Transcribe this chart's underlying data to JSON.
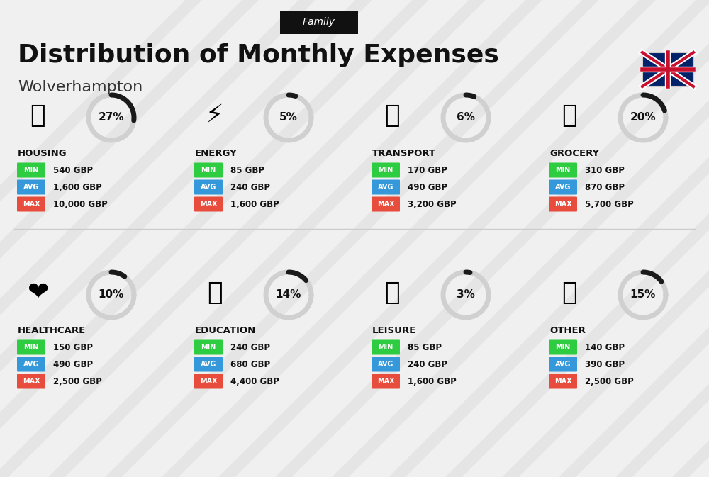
{
  "title": "Distribution of Monthly Expenses",
  "subtitle": "Wolverhampton",
  "tag": "Family",
  "bg_color": "#f0f0f0",
  "categories": [
    {
      "name": "HOUSING",
      "pct": 27,
      "min": "540 GBP",
      "avg": "1,600 GBP",
      "max": "10,000 GBP",
      "emoji": "🏗"
    },
    {
      "name": "ENERGY",
      "pct": 5,
      "min": "85 GBP",
      "avg": "240 GBP",
      "max": "1,600 GBP",
      "emoji": "⚡"
    },
    {
      "name": "TRANSPORT",
      "pct": 6,
      "min": "170 GBP",
      "avg": "490 GBP",
      "max": "3,200 GBP",
      "emoji": "🚌"
    },
    {
      "name": "GROCERY",
      "pct": 20,
      "min": "310 GBP",
      "avg": "870 GBP",
      "max": "5,700 GBP",
      "emoji": "🛒"
    },
    {
      "name": "HEALTHCARE",
      "pct": 10,
      "min": "150 GBP",
      "avg": "490 GBP",
      "max": "2,500 GBP",
      "emoji": "❤"
    },
    {
      "name": "EDUCATION",
      "pct": 14,
      "min": "240 GBP",
      "avg": "680 GBP",
      "max": "4,400 GBP",
      "emoji": "🎓"
    },
    {
      "name": "LEISURE",
      "pct": 3,
      "min": "85 GBP",
      "avg": "240 GBP",
      "max": "1,600 GBP",
      "emoji": "🛍"
    },
    {
      "name": "OTHER",
      "pct": 15,
      "min": "140 GBP",
      "avg": "390 GBP",
      "max": "2,500 GBP",
      "emoji": "💰"
    }
  ],
  "min_color": "#2ecc40",
  "avg_color": "#3498db",
  "max_color": "#e74c3c",
  "circle_color": "#222222",
  "circle_bg": "#e8e8e8",
  "label_color": "#111111",
  "tag_bg": "#111111",
  "tag_fg": "#ffffff"
}
